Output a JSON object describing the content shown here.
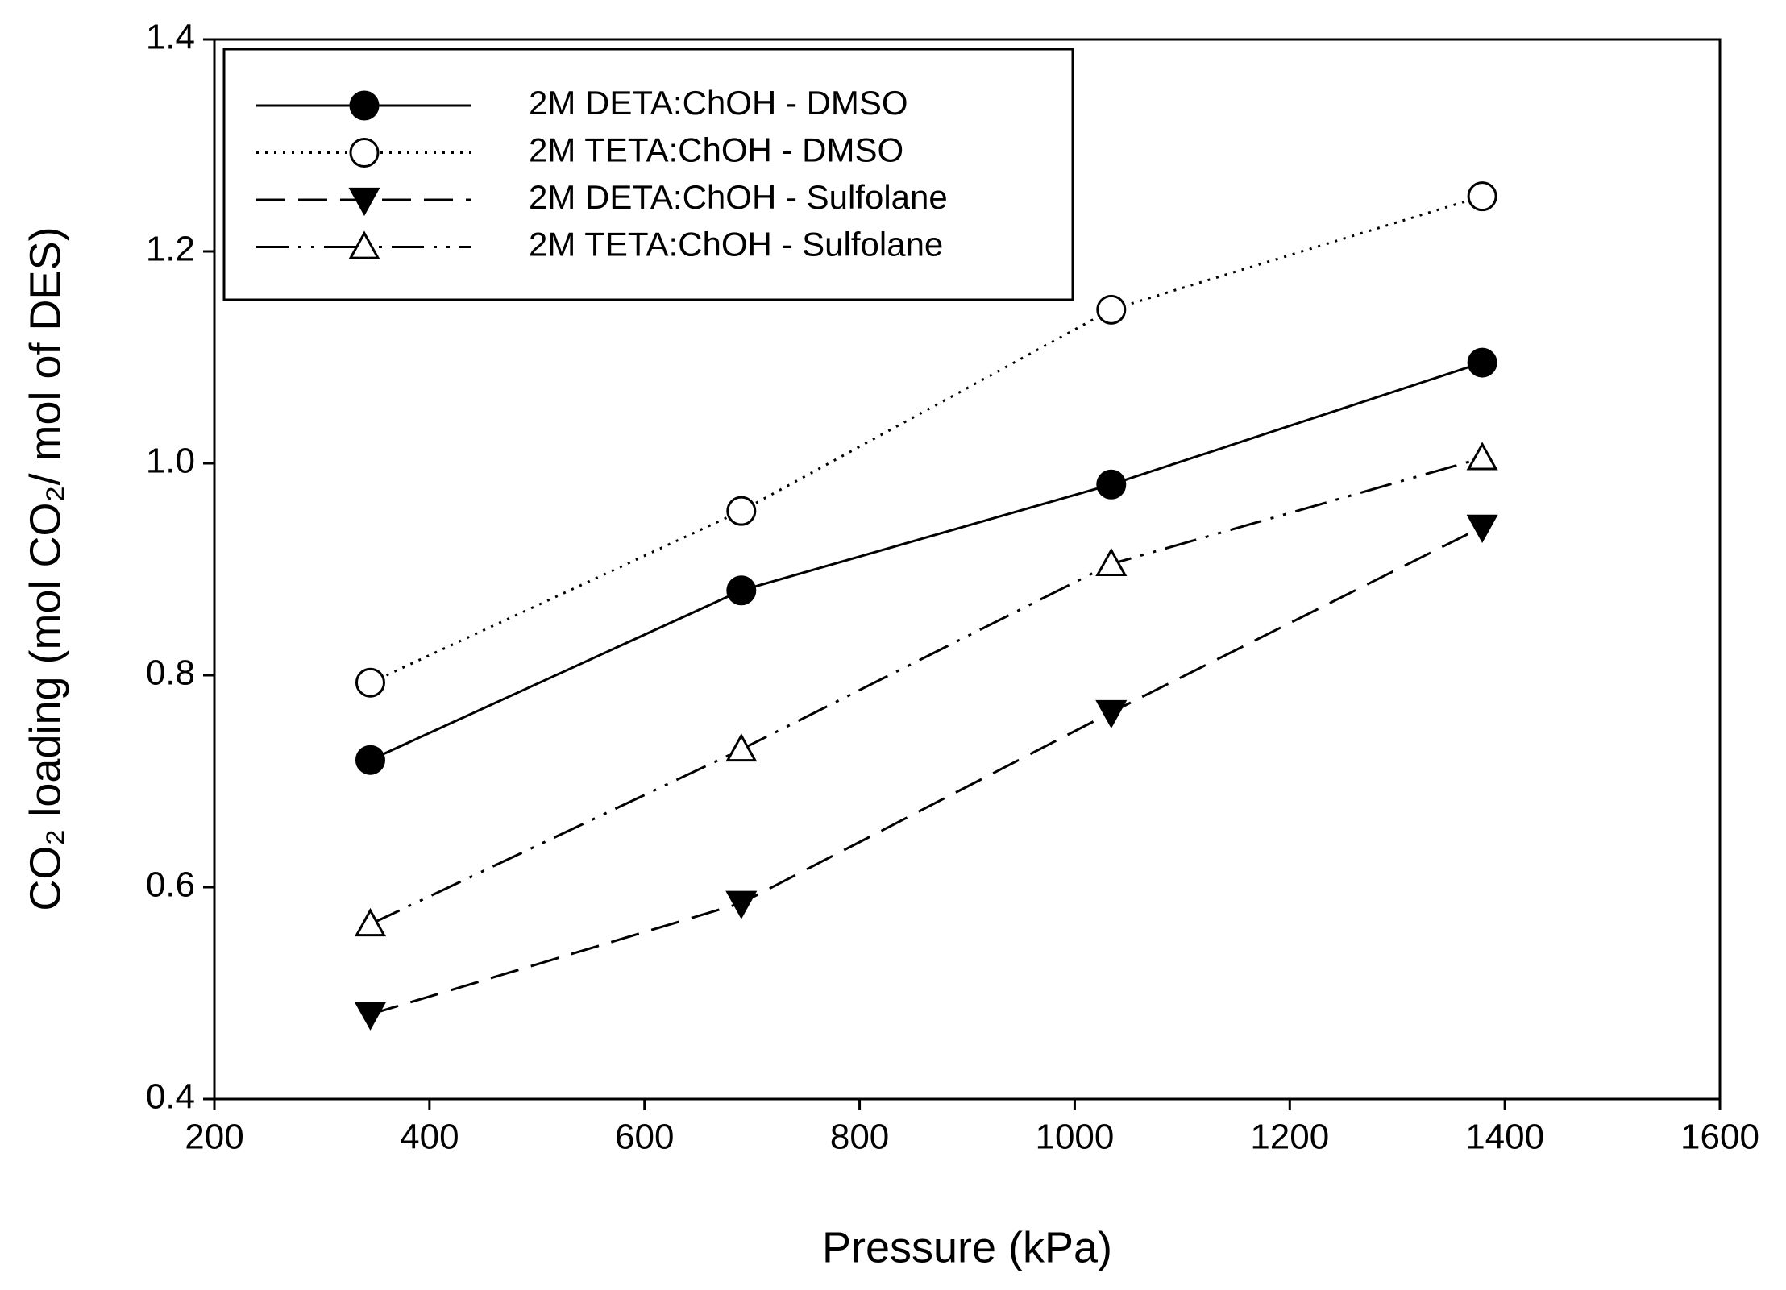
{
  "chart_data": {
    "type": "line",
    "x_label": "Pressure (kPa)",
    "y_label": "CO₂ loading (mol CO₂/ mol of DES)",
    "x": [
      345,
      690,
      1034,
      1379
    ],
    "series": [
      {
        "name": "2M DETA:ChOH - DMSO",
        "color": "#000000",
        "linestyle": "solid",
        "marker": "circle",
        "values": [
          0.72,
          0.88,
          0.98,
          1.095
        ]
      },
      {
        "name": "2M TETA:ChOH - DMSO",
        "color": "#000000",
        "linestyle": "dotted",
        "marker": "circle-open",
        "values": [
          0.793,
          0.955,
          1.145,
          1.252
        ]
      },
      {
        "name": "2M DETA:ChOH - Sulfolane",
        "color": "#000000",
        "linestyle": "dashed",
        "marker": "triangle-down",
        "values": [
          0.48,
          0.585,
          0.765,
          0.94
        ]
      },
      {
        "name": "2M TETA:ChOH - Sulfolane",
        "color": "#000000",
        "linestyle": "dashdotdot",
        "marker": "triangle-up-open",
        "values": [
          0.565,
          0.73,
          0.905,
          1.005
        ]
      }
    ],
    "xlim": [
      200,
      1600
    ],
    "xticks": [
      200,
      400,
      600,
      800,
      1000,
      1200,
      1400,
      1600
    ],
    "ylim": [
      0.4,
      1.4
    ],
    "yticks": [
      0.4,
      0.6,
      0.8,
      {
        "value": 1,
        "label": "1.0"
      },
      1.2,
      1.4
    ],
    "legend": "upper left"
  }
}
